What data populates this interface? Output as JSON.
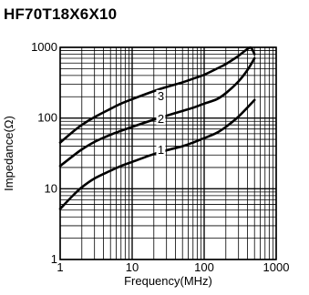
{
  "title": "HF70T18X6X10",
  "chart_data": {
    "type": "line",
    "x_scale": "log",
    "y_scale": "log",
    "xlim": [
      1,
      1000
    ],
    "ylim": [
      1,
      1000
    ],
    "grid": true,
    "xlabel": "Frequency(MHz)",
    "ylabel": "Impedance(Ω)",
    "x_ticks": [
      {
        "value": 1,
        "label": "1"
      },
      {
        "value": 10,
        "label": "10"
      },
      {
        "value": 100,
        "label": "100"
      },
      {
        "value": 1000,
        "label": "1000"
      }
    ],
    "y_ticks": [
      {
        "value": 1,
        "label": "1"
      },
      {
        "value": 10,
        "label": "10"
      },
      {
        "value": 100,
        "label": "100"
      },
      {
        "value": 1000,
        "label": "1000"
      }
    ],
    "series": [
      {
        "name": "1",
        "x": [
          1,
          1.5,
          2,
          3,
          5,
          7,
          10,
          20,
          30,
          50,
          70,
          100,
          150,
          200,
          300,
          500
        ],
        "y": [
          5.2,
          8,
          10.5,
          14,
          18,
          21,
          24,
          31,
          35,
          40,
          45,
          52,
          62,
          75,
          105,
          180
        ]
      },
      {
        "name": "2",
        "x": [
          1,
          1.5,
          2,
          3,
          5,
          7,
          10,
          20,
          30,
          50,
          70,
          100,
          150,
          200,
          300,
          400,
          500
        ],
        "y": [
          21,
          29,
          36,
          46,
          58,
          66,
          75,
          95,
          108,
          126,
          140,
          160,
          185,
          225,
          330,
          480,
          700
        ]
      },
      {
        "name": "3",
        "x": [
          1,
          1.5,
          2,
          3,
          5,
          7,
          10,
          20,
          30,
          50,
          70,
          100,
          150,
          200,
          300,
          400,
          450,
          500
        ],
        "y": [
          45,
          64,
          80,
          103,
          135,
          160,
          185,
          240,
          275,
          320,
          360,
          410,
          500,
          580,
          760,
          950,
          980,
          800
        ]
      }
    ]
  }
}
